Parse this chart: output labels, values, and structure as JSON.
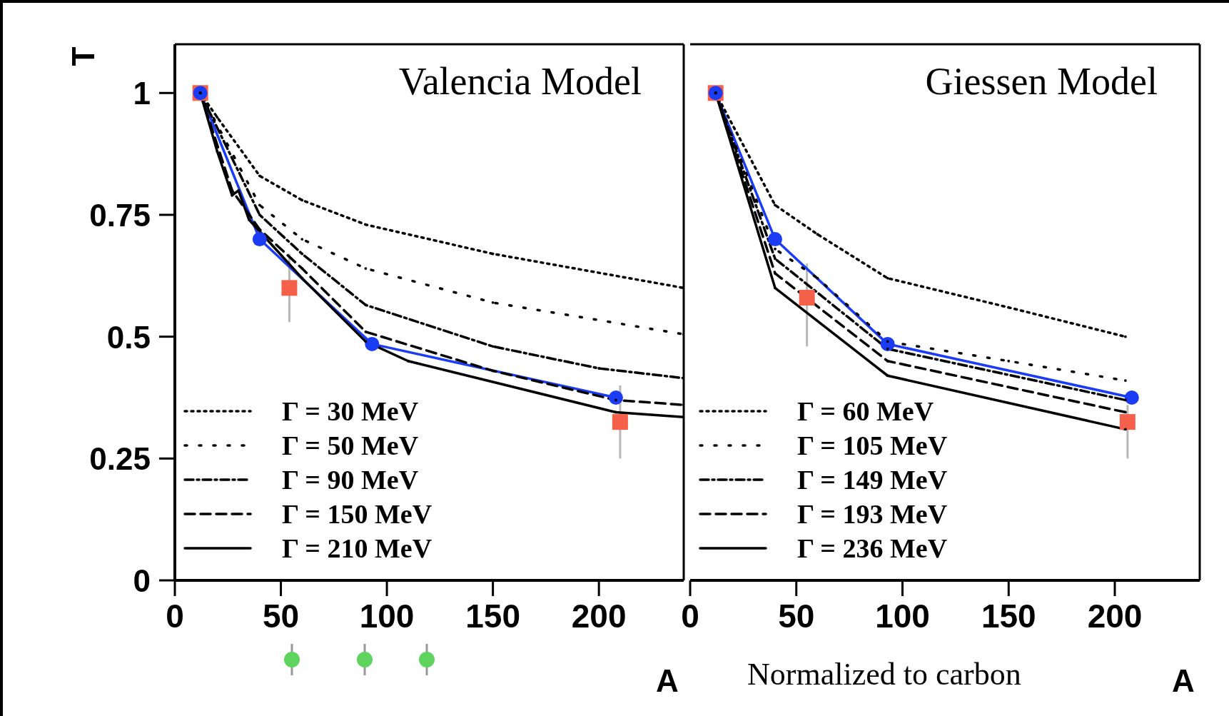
{
  "chart_data": [
    {
      "type": "line",
      "title": "Valencia Model",
      "xlabel": "A",
      "ylabel": "T",
      "xlim": [
        0,
        240
      ],
      "xticks": [
        0,
        50,
        100,
        150,
        200
      ],
      "ylim": [
        0,
        1.1
      ],
      "yticks": [
        0,
        0.25,
        0.5,
        0.75,
        1
      ],
      "legend": "bottom left",
      "series": [
        {
          "name": "Γ = 30 MeV",
          "color": "#000000",
          "line_style": "dotted",
          "marker": "none",
          "x": [
            12,
            20,
            40,
            60,
            90,
            150,
            240
          ],
          "values": [
            1,
            0.95,
            0.83,
            0.78,
            0.73,
            0.67,
            0.6
          ]
        },
        {
          "name": "Γ = 50 MeV",
          "color": "#000000",
          "line_style": "sparse-dotted",
          "marker": "none",
          "x": [
            12,
            40,
            60,
            90,
            150,
            240
          ],
          "values": [
            1,
            0.77,
            0.7,
            0.64,
            0.57,
            0.505
          ]
        },
        {
          "name": "Γ = 90 MeV",
          "color": "#000000",
          "line_style": "dashdot",
          "marker": "none",
          "x": [
            12,
            40,
            60,
            90,
            150,
            200,
            240
          ],
          "values": [
            1,
            0.75,
            0.67,
            0.565,
            0.48,
            0.435,
            0.415
          ]
        },
        {
          "name": "Γ = 150 MeV",
          "color": "#000000",
          "line_style": "dashed",
          "marker": "none",
          "x": [
            12,
            27,
            40,
            60,
            90,
            150,
            208,
            240
          ],
          "values": [
            1,
            0.8,
            0.72,
            0.64,
            0.51,
            0.43,
            0.37,
            0.36
          ]
        },
        {
          "name": "Γ = 210 MeV",
          "color": "#000000",
          "line_style": "solid",
          "marker": "none",
          "x": [
            12,
            20,
            27,
            30,
            35,
            60,
            90,
            110,
            208,
            240
          ],
          "values": [
            1,
            0.88,
            0.79,
            0.8,
            0.74,
            0.62,
            0.49,
            0.45,
            0.345,
            0.335
          ]
        },
        {
          "color": "#1a3cf5",
          "line_style": "solid",
          "marker": "circle",
          "x": [
            12,
            40,
            93,
            208
          ],
          "values": [
            1,
            0.7,
            0.485,
            0.375
          ]
        },
        {
          "type": "scatter",
          "color": "#f4604a",
          "marker": "square",
          "x": [
            12,
            54,
            210
          ],
          "values": [
            1,
            0.6,
            0.325
          ],
          "errors": [
            null,
            [
              0.53,
              0.67
            ],
            [
              0.25,
              0.4
            ]
          ]
        }
      ]
    },
    {
      "type": "line",
      "title": "Giessen Model",
      "xlabel": "A",
      "xlim": [
        0,
        240
      ],
      "xticks": [
        0,
        50,
        100,
        150,
        200
      ],
      "ylim": [
        0,
        1.1
      ],
      "yticks": [
        0,
        0.25,
        0.5,
        0.75,
        1
      ],
      "tick_labels": "x",
      "legend": "bottom left",
      "annotations": [
        "Normalized to carbon"
      ],
      "series": [
        {
          "name": "Γ = 60 MeV",
          "color": "#000000",
          "line_style": "dotted",
          "marker": "none",
          "x": [
            12,
            40,
            60,
            93,
            150,
            205
          ],
          "values": [
            1,
            0.77,
            0.71,
            0.62,
            0.56,
            0.5
          ]
        },
        {
          "name": "Γ = 105 MeV",
          "color": "#000000",
          "line_style": "sparse-dotted",
          "marker": "none",
          "x": [
            12,
            40,
            60,
            93,
            150,
            205
          ],
          "values": [
            1,
            0.68,
            0.62,
            0.49,
            0.45,
            0.41
          ]
        },
        {
          "name": "Γ = 149 MeV",
          "color": "#000000",
          "line_style": "dashdot",
          "marker": "none",
          "x": [
            12,
            40,
            93,
            205
          ],
          "values": [
            1,
            0.66,
            0.475,
            0.37
          ]
        },
        {
          "name": "Γ = 193 MeV",
          "color": "#000000",
          "line_style": "dashed",
          "marker": "none",
          "x": [
            12,
            40,
            93,
            205
          ],
          "values": [
            1,
            0.63,
            0.45,
            0.345
          ]
        },
        {
          "name": "Γ = 236 MeV",
          "color": "#000000",
          "line_style": "solid",
          "marker": "none",
          "x": [
            12,
            40,
            93,
            205
          ],
          "values": [
            1,
            0.6,
            0.42,
            0.31
          ]
        },
        {
          "color": "#1a3cf5",
          "line_style": "solid",
          "marker": "circle",
          "x": [
            12,
            40,
            93,
            208
          ],
          "values": [
            1,
            0.7,
            0.485,
            0.375
          ]
        },
        {
          "type": "scatter",
          "color": "#f4604a",
          "marker": "square",
          "x": [
            12,
            55,
            206
          ],
          "values": [
            1,
            0.58,
            0.325
          ],
          "errors": [
            null,
            [
              0.48,
              0.65
            ],
            [
              0.25,
              0.36
            ]
          ]
        }
      ]
    }
  ]
}
